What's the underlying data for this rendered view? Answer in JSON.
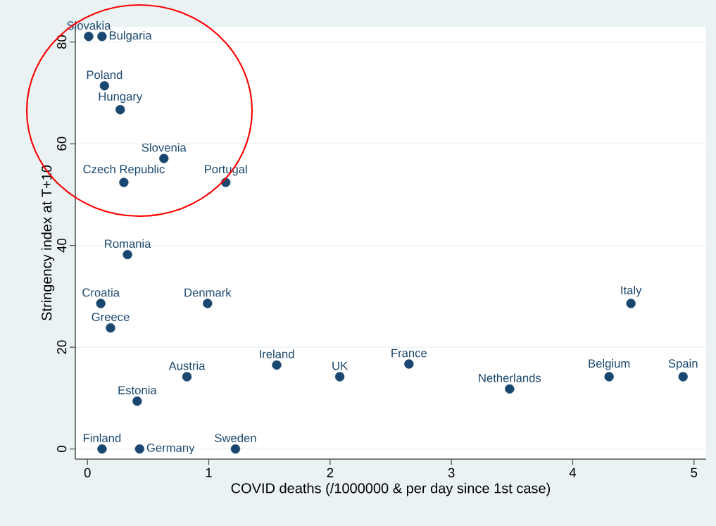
{
  "chart_data": {
    "type": "scatter",
    "xlabel": "COVID deaths (/1000000 & per day since 1st case)",
    "ylabel": "Stringency index at T+10",
    "x": [
      0.01,
      0.12,
      0.14,
      0.27,
      0.63,
      0.3,
      1.14,
      0.33,
      0.11,
      0.99,
      0.19,
      4.48,
      1.56,
      2.65,
      0.82,
      2.08,
      4.3,
      4.91,
      3.48,
      0.41,
      0.12,
      0.43,
      1.22
    ],
    "values": [
      81.1,
      81.1,
      71.4,
      66.7,
      57.1,
      52.4,
      52.4,
      38.2,
      28.6,
      28.6,
      23.8,
      28.6,
      16.5,
      16.7,
      14.2,
      14.2,
      14.2,
      14.2,
      11.8,
      9.4,
      0,
      0,
      0
    ],
    "color": "#1a476f",
    "marker": "circle",
    "grid": "y",
    "xlim": [
      -0.1,
      5.1
    ],
    "ylim": [
      -2,
      83
    ],
    "xticks": [
      0,
      1,
      2,
      3,
      4,
      5
    ],
    "yticks": [
      0,
      20,
      40,
      60,
      80
    ],
    "annotations": [
      {
        "text": "Slovakia",
        "x": 0.01,
        "y": 81.1
      },
      {
        "text": "Bulgaria",
        "x": 0.12,
        "y": 81.1
      },
      {
        "text": "Poland",
        "x": 0.14,
        "y": 71.4
      },
      {
        "text": "Hungary",
        "x": 0.27,
        "y": 66.7
      },
      {
        "text": "Slovenia",
        "x": 0.63,
        "y": 57.1
      },
      {
        "text": "Czech Republic",
        "x": 0.3,
        "y": 52.4
      },
      {
        "text": "Portugal",
        "x": 1.14,
        "y": 52.4
      },
      {
        "text": "Romania",
        "x": 0.33,
        "y": 38.2
      },
      {
        "text": "Croatia",
        "x": 0.11,
        "y": 28.6
      },
      {
        "text": "Denmark",
        "x": 0.99,
        "y": 28.6
      },
      {
        "text": "Greece",
        "x": 0.19,
        "y": 23.8
      },
      {
        "text": "Italy",
        "x": 4.48,
        "y": 28.6
      },
      {
        "text": "Ireland",
        "x": 1.56,
        "y": 16.5
      },
      {
        "text": "France",
        "x": 2.65,
        "y": 16.7
      },
      {
        "text": "Austria",
        "x": 0.82,
        "y": 14.2
      },
      {
        "text": "UK",
        "x": 2.08,
        "y": 14.2
      },
      {
        "text": "Belgium",
        "x": 4.3,
        "y": 14.2
      },
      {
        "text": "Spain",
        "x": 4.91,
        "y": 14.2
      },
      {
        "text": "Netherlands",
        "x": 3.48,
        "y": 11.8
      },
      {
        "text": "Estonia",
        "x": 0.41,
        "y": 9.4
      },
      {
        "text": "Finland",
        "x": 0.12,
        "y": 0
      },
      {
        "text": "Germany",
        "x": 0.43,
        "y": 0
      },
      {
        "text": "Sweden",
        "x": 1.22,
        "y": 0
      }
    ]
  }
}
